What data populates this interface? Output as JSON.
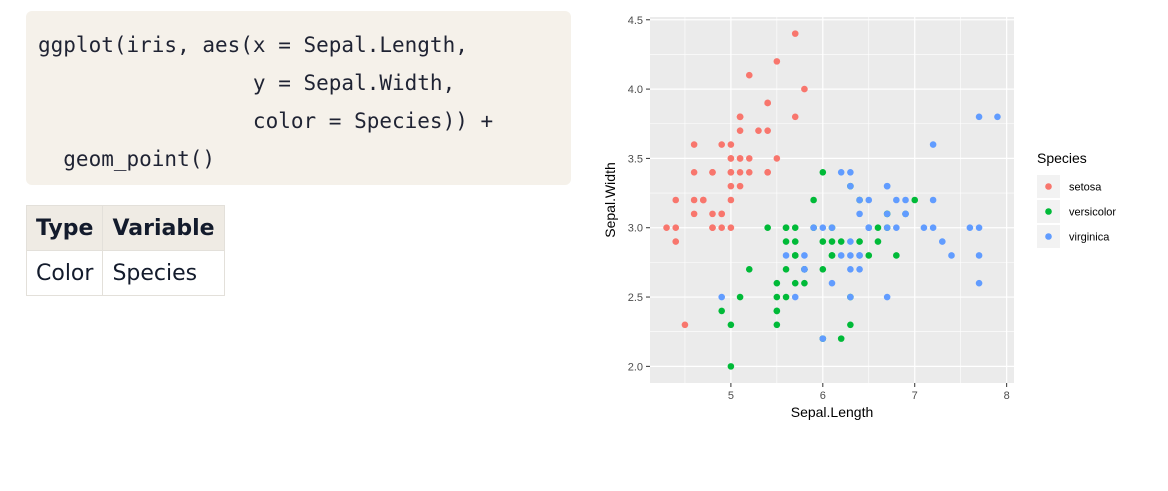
{
  "code": {
    "lines": [
      "ggplot(iris, aes(x = Sepal.Length,",
      "                 y = Sepal.Width,",
      "                 color = Species)) +",
      "  geom_point()"
    ]
  },
  "table": {
    "headers": [
      "Type",
      "Variable"
    ],
    "rows": [
      [
        "Color",
        "Species"
      ]
    ]
  },
  "chart_data": {
    "type": "scatter",
    "xlabel": "Sepal.Length",
    "ylabel": "Sepal.Width",
    "xlim": [
      4.3,
      7.9
    ],
    "ylim": [
      2.0,
      4.4
    ],
    "xticks": [
      5,
      6,
      7,
      8
    ],
    "yticks": [
      2.0,
      2.5,
      3.0,
      3.5,
      4.0,
      4.5
    ],
    "grid": true,
    "legend": {
      "title": "Species",
      "position": "right"
    },
    "series": [
      {
        "name": "setosa",
        "color": "#F8766D",
        "points": [
          [
            5.1,
            3.5
          ],
          [
            4.9,
            3.0
          ],
          [
            4.7,
            3.2
          ],
          [
            4.6,
            3.1
          ],
          [
            5.0,
            3.6
          ],
          [
            5.4,
            3.9
          ],
          [
            4.6,
            3.4
          ],
          [
            5.0,
            3.4
          ],
          [
            4.4,
            2.9
          ],
          [
            4.9,
            3.1
          ],
          [
            5.4,
            3.7
          ],
          [
            4.8,
            3.4
          ],
          [
            4.8,
            3.0
          ],
          [
            4.3,
            3.0
          ],
          [
            5.8,
            4.0
          ],
          [
            5.7,
            4.4
          ],
          [
            5.4,
            3.9
          ],
          [
            5.1,
            3.5
          ],
          [
            5.7,
            3.8
          ],
          [
            5.1,
            3.8
          ],
          [
            5.4,
            3.4
          ],
          [
            5.1,
            3.7
          ],
          [
            4.6,
            3.6
          ],
          [
            5.1,
            3.3
          ],
          [
            4.8,
            3.4
          ],
          [
            5.0,
            3.0
          ],
          [
            5.0,
            3.4
          ],
          [
            5.2,
            3.5
          ],
          [
            5.2,
            3.4
          ],
          [
            4.7,
            3.2
          ],
          [
            4.8,
            3.1
          ],
          [
            5.4,
            3.4
          ],
          [
            5.2,
            4.1
          ],
          [
            5.5,
            4.2
          ],
          [
            4.9,
            3.1
          ],
          [
            5.0,
            3.2
          ],
          [
            5.5,
            3.5
          ],
          [
            4.9,
            3.6
          ],
          [
            4.4,
            3.0
          ],
          [
            5.1,
            3.4
          ],
          [
            5.0,
            3.5
          ],
          [
            4.5,
            2.3
          ],
          [
            4.4,
            3.2
          ],
          [
            5.0,
            3.5
          ],
          [
            5.1,
            3.8
          ],
          [
            4.8,
            3.0
          ],
          [
            5.1,
            3.8
          ],
          [
            4.6,
            3.2
          ],
          [
            5.3,
            3.7
          ],
          [
            5.0,
            3.3
          ]
        ]
      },
      {
        "name": "versicolor",
        "color": "#00BA38",
        "points": [
          [
            7.0,
            3.2
          ],
          [
            6.4,
            3.2
          ],
          [
            6.9,
            3.1
          ],
          [
            5.5,
            2.3
          ],
          [
            6.5,
            2.8
          ],
          [
            5.7,
            2.8
          ],
          [
            6.3,
            3.3
          ],
          [
            4.9,
            2.4
          ],
          [
            6.6,
            2.9
          ],
          [
            5.2,
            2.7
          ],
          [
            5.0,
            2.0
          ],
          [
            5.9,
            3.0
          ],
          [
            6.0,
            2.2
          ],
          [
            6.1,
            2.9
          ],
          [
            5.6,
            2.9
          ],
          [
            6.7,
            3.1
          ],
          [
            5.6,
            3.0
          ],
          [
            5.8,
            2.7
          ],
          [
            6.2,
            2.2
          ],
          [
            5.6,
            2.5
          ],
          [
            5.9,
            3.2
          ],
          [
            6.1,
            2.8
          ],
          [
            6.3,
            2.5
          ],
          [
            6.1,
            2.8
          ],
          [
            6.4,
            2.9
          ],
          [
            6.6,
            3.0
          ],
          [
            6.8,
            2.8
          ],
          [
            6.7,
            3.0
          ],
          [
            6.0,
            2.9
          ],
          [
            5.7,
            2.6
          ],
          [
            5.5,
            2.4
          ],
          [
            5.5,
            2.4
          ],
          [
            5.8,
            2.7
          ],
          [
            6.0,
            2.7
          ],
          [
            5.4,
            3.0
          ],
          [
            6.0,
            3.4
          ],
          [
            6.7,
            3.1
          ],
          [
            6.3,
            2.3
          ],
          [
            5.6,
            3.0
          ],
          [
            5.5,
            2.5
          ],
          [
            5.5,
            2.6
          ],
          [
            6.1,
            3.0
          ],
          [
            5.8,
            2.6
          ],
          [
            5.0,
            2.3
          ],
          [
            5.6,
            2.7
          ],
          [
            5.7,
            3.0
          ],
          [
            5.7,
            2.9
          ],
          [
            6.2,
            2.9
          ],
          [
            5.1,
            2.5
          ],
          [
            5.7,
            2.8
          ]
        ]
      },
      {
        "name": "virginica",
        "color": "#619CFF",
        "points": [
          [
            6.3,
            3.3
          ],
          [
            5.8,
            2.7
          ],
          [
            7.1,
            3.0
          ],
          [
            6.3,
            2.9
          ],
          [
            6.5,
            3.0
          ],
          [
            7.6,
            3.0
          ],
          [
            4.9,
            2.5
          ],
          [
            7.3,
            2.9
          ],
          [
            6.7,
            2.5
          ],
          [
            7.2,
            3.6
          ],
          [
            6.5,
            3.2
          ],
          [
            6.4,
            2.7
          ],
          [
            6.8,
            3.0
          ],
          [
            5.7,
            2.5
          ],
          [
            5.8,
            2.8
          ],
          [
            6.4,
            3.2
          ],
          [
            6.5,
            3.0
          ],
          [
            7.7,
            3.8
          ],
          [
            7.7,
            2.6
          ],
          [
            6.0,
            2.2
          ],
          [
            6.9,
            3.2
          ],
          [
            5.6,
            2.8
          ],
          [
            7.7,
            2.8
          ],
          [
            6.3,
            2.7
          ],
          [
            6.7,
            3.3
          ],
          [
            7.2,
            3.2
          ],
          [
            6.2,
            2.8
          ],
          [
            6.1,
            3.0
          ],
          [
            6.4,
            2.8
          ],
          [
            7.2,
            3.0
          ],
          [
            7.4,
            2.8
          ],
          [
            7.9,
            3.8
          ],
          [
            6.4,
            2.8
          ],
          [
            6.3,
            2.8
          ],
          [
            6.1,
            2.6
          ],
          [
            7.7,
            3.0
          ],
          [
            6.3,
            3.4
          ],
          [
            6.4,
            3.1
          ],
          [
            6.0,
            3.0
          ],
          [
            6.9,
            3.1
          ],
          [
            6.7,
            3.1
          ],
          [
            6.9,
            3.1
          ],
          [
            5.8,
            2.7
          ],
          [
            6.8,
            3.2
          ],
          [
            6.7,
            3.3
          ],
          [
            6.7,
            3.0
          ],
          [
            6.3,
            2.5
          ],
          [
            6.5,
            3.0
          ],
          [
            6.2,
            3.4
          ],
          [
            5.9,
            3.0
          ]
        ]
      }
    ]
  }
}
